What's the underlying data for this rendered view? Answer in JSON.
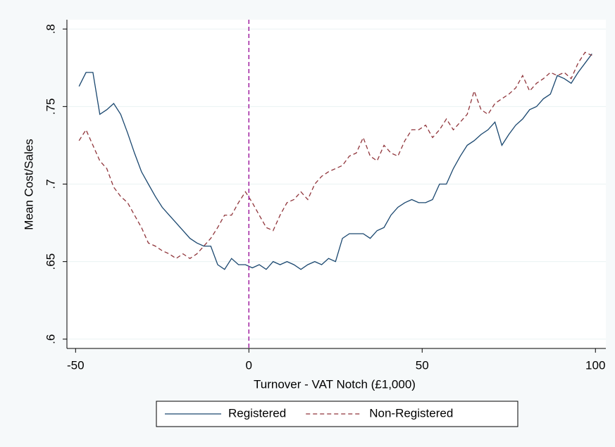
{
  "chart_data": {
    "type": "line",
    "x_label": "Turnover - VAT Notch (£1,000)",
    "y_label": "Mean Cost/Sales",
    "x": [
      -49,
      -47,
      -45,
      -43,
      -41,
      -39,
      -37,
      -35,
      -33,
      -31,
      -29,
      -27,
      -25,
      -23,
      -21,
      -19,
      -17,
      -15,
      -13,
      -11,
      -9,
      -7,
      -5,
      -3,
      -1,
      1,
      3,
      5,
      7,
      9,
      11,
      13,
      15,
      17,
      19,
      21,
      23,
      25,
      27,
      29,
      31,
      33,
      35,
      37,
      39,
      41,
      43,
      45,
      47,
      49,
      51,
      53,
      55,
      57,
      59,
      61,
      63,
      65,
      67,
      69,
      71,
      73,
      75,
      77,
      79,
      81,
      83,
      85,
      87,
      89,
      91,
      93,
      95,
      97,
      99
    ],
    "series": [
      {
        "name": "Registered",
        "color": "#1a476f",
        "dash": false,
        "values": [
          0.763,
          0.772,
          0.772,
          0.745,
          0.748,
          0.752,
          0.745,
          0.733,
          0.72,
          0.708,
          0.7,
          0.692,
          0.685,
          0.68,
          0.675,
          0.67,
          0.665,
          0.662,
          0.66,
          0.66,
          0.648,
          0.645,
          0.652,
          0.648,
          0.648,
          0.646,
          0.648,
          0.645,
          0.65,
          0.648,
          0.65,
          0.648,
          0.645,
          0.648,
          0.65,
          0.648,
          0.652,
          0.65,
          0.665,
          0.668,
          0.668,
          0.668,
          0.665,
          0.67,
          0.672,
          0.68,
          0.685,
          0.688,
          0.69,
          0.688,
          0.688,
          0.69,
          0.7,
          0.7,
          0.71,
          0.718,
          0.725,
          0.728,
          0.732,
          0.735,
          0.74,
          0.725,
          0.732,
          0.738,
          0.742,
          0.748,
          0.75,
          0.755,
          0.758,
          0.77,
          0.768,
          0.765,
          0.772,
          0.778,
          0.784
        ]
      },
      {
        "name": "Non-Registered",
        "color": "#90353b",
        "dash": true,
        "values": [
          0.728,
          0.735,
          0.725,
          0.715,
          0.71,
          0.698,
          0.692,
          0.688,
          0.68,
          0.672,
          0.662,
          0.66,
          0.657,
          0.655,
          0.652,
          0.655,
          0.652,
          0.655,
          0.66,
          0.665,
          0.672,
          0.68,
          0.68,
          0.688,
          0.695,
          0.688,
          0.68,
          0.672,
          0.67,
          0.68,
          0.688,
          0.69,
          0.695,
          0.69,
          0.7,
          0.705,
          0.708,
          0.71,
          0.712,
          0.718,
          0.72,
          0.73,
          0.718,
          0.715,
          0.725,
          0.72,
          0.718,
          0.728,
          0.735,
          0.735,
          0.738,
          0.73,
          0.735,
          0.742,
          0.735,
          0.74,
          0.745,
          0.76,
          0.748,
          0.745,
          0.752,
          0.755,
          0.758,
          0.762,
          0.77,
          0.76,
          0.765,
          0.768,
          0.772,
          0.77,
          0.772,
          0.768,
          0.778,
          0.785,
          0.783
        ]
      }
    ],
    "xline": {
      "value": 0,
      "color": "#a020a0"
    },
    "xlim": [
      -52.5,
      103
    ],
    "ylim": [
      0.594,
      0.806
    ],
    "xticks": [
      -50,
      0,
      50,
      100
    ],
    "yticks": [
      {
        "value": 0.6,
        "label": ".6"
      },
      {
        "value": 0.65,
        "label": ".65"
      },
      {
        "value": 0.7,
        "label": ".7"
      },
      {
        "value": 0.75,
        "label": ".75"
      },
      {
        "value": 0.8,
        "label": ".8"
      }
    ],
    "grid": true,
    "legend": "bottom"
  }
}
